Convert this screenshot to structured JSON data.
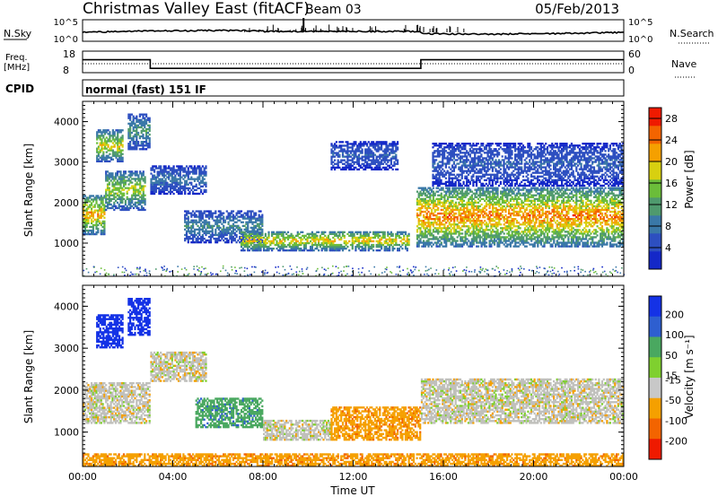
{
  "header": {
    "station": "Christmas Valley East (fitACF)",
    "beam": "Beam 03",
    "date": "05/Feb/2013"
  },
  "nsky": {
    "label": "N.Sky",
    "tick_top": "10^5",
    "tick_bottom": "10^0",
    "right_label": "N.Search",
    "right_tick_top": "10^5",
    "right_tick_bottom": "10^0"
  },
  "freq": {
    "label_line1": "Freq.",
    "label_line2": "[MHz]",
    "tick_top": "18",
    "tick_bottom": "8",
    "right_label": "Nave",
    "right_tick_top": "60",
    "right_tick_bottom": "0"
  },
  "cpid": {
    "label": "CPID",
    "mode": "normal (fast) 151 IF"
  },
  "power_panel": {
    "ylabel": "Slant Range [km]",
    "yticks": [
      "1000",
      "2000",
      "3000",
      "4000"
    ],
    "colorbar_label": "Power [dB]",
    "colorbar_ticks": [
      "4",
      "8",
      "12",
      "16",
      "20",
      "24",
      "28"
    ]
  },
  "velocity_panel": {
    "ylabel": "Slant Range [km]",
    "yticks": [
      "1000",
      "2000",
      "3000",
      "4000"
    ],
    "colorbar_label": "Velocity [m s⁻¹]",
    "colorbar_ticks": [
      "200",
      "100",
      "50",
      "15",
      "-15",
      "-50",
      "-100",
      "-200"
    ]
  },
  "xaxis": {
    "label": "Time UT",
    "ticks": [
      "00:00",
      "04:00",
      "08:00",
      "12:00",
      "16:00",
      "20:00",
      "00:00"
    ]
  },
  "colors": {
    "power_scale": [
      "#1428c8",
      "#2d4fc0",
      "#3a78a8",
      "#4f9a6e",
      "#6bbd3a",
      "#d8d010",
      "#f5a000",
      "#f36400",
      "#ef1a00"
    ],
    "velocity_scale": [
      "#1432e6",
      "#2e5fd0",
      "#4aa860",
      "#7fd02f",
      "#c8c8c8",
      "#f5a000",
      "#f36400",
      "#ef1a00"
    ],
    "ground_scatter": "#c0c0bc"
  },
  "chart_data": {
    "type": "heatmap",
    "title": "Christmas Valley East (fitACF) Beam 03",
    "xlabel": "Time UT",
    "x_ticks": [
      "00:00",
      "04:00",
      "08:00",
      "12:00",
      "16:00",
      "20:00",
      "00:00"
    ],
    "xlim_hours": [
      0,
      24
    ],
    "ylim_km": [
      180,
      4500
    ],
    "frequency_MHz": [
      {
        "start": "00:00",
        "end": "03:00",
        "value": 14
      },
      {
        "start": "03:00",
        "end": "15:00",
        "value": 10
      },
      {
        "start": "15:00",
        "end": "24:00",
        "value": 14
      }
    ],
    "cpid": "normal (fast) 151 IF",
    "panels": [
      {
        "name": "Power",
        "colorbar_label": "Power [dB]",
        "colorbar_range": [
          0,
          30
        ],
        "ylabel": "Slant Range [km]",
        "echo_bands": [
          {
            "t0": 0.0,
            "t1": 1.0,
            "r0": 1200,
            "r1": 2200,
            "peak_dB": 26
          },
          {
            "t0": 0.6,
            "t1": 1.8,
            "r0": 3000,
            "r1": 3800,
            "peak_dB": 22
          },
          {
            "t0": 1.0,
            "t1": 2.8,
            "r0": 1800,
            "r1": 2800,
            "peak_dB": 20
          },
          {
            "t0": 2.0,
            "t1": 3.0,
            "r0": 3300,
            "r1": 4200,
            "peak_dB": 14
          },
          {
            "t0": 3.0,
            "t1": 5.5,
            "r0": 2200,
            "r1": 2900,
            "peak_dB": 10
          },
          {
            "t0": 4.5,
            "t1": 8.0,
            "r0": 1000,
            "r1": 1800,
            "peak_dB": 12
          },
          {
            "t0": 7.0,
            "t1": 14.5,
            "r0": 800,
            "r1": 1300,
            "peak_dB": 24
          },
          {
            "t0": 11.0,
            "t1": 14.0,
            "r0": 2800,
            "r1": 3500,
            "peak_dB": 8
          },
          {
            "t0": 14.8,
            "t1": 24.0,
            "r0": 900,
            "r1": 2400,
            "peak_dB": 28
          },
          {
            "t0": 15.5,
            "t1": 24.0,
            "r0": 2400,
            "r1": 3500,
            "peak_dB": 8
          }
        ]
      },
      {
        "name": "Velocity",
        "colorbar_label": "Velocity [m s⁻¹]",
        "colorbar_range": [
          -200,
          200
        ],
        "ylabel": "Slant Range [km]",
        "echo_bands": [
          {
            "t0": 0.0,
            "t1": 3.0,
            "r0": 1200,
            "r1": 2200,
            "velocity": 0
          },
          {
            "t0": 0.6,
            "t1": 1.8,
            "r0": 3000,
            "r1": 3800,
            "velocity": 200
          },
          {
            "t0": 2.0,
            "t1": 3.0,
            "r0": 3300,
            "r1": 4200,
            "velocity": 200
          },
          {
            "t0": 3.0,
            "t1": 5.5,
            "r0": 2200,
            "r1": 2900,
            "velocity": 0
          },
          {
            "t0": 5.0,
            "t1": 8.0,
            "r0": 1100,
            "r1": 1800,
            "velocity": 60
          },
          {
            "t0": 8.0,
            "t1": 11.0,
            "r0": 800,
            "r1": 1300,
            "velocity": 0
          },
          {
            "t0": 11.0,
            "t1": 15.0,
            "r0": 800,
            "r1": 1600,
            "velocity": -60
          },
          {
            "t0": 15.0,
            "t1": 24.0,
            "r0": 1200,
            "r1": 2300,
            "velocity": 0
          },
          {
            "t0": 0.0,
            "t1": 24.0,
            "r0": 180,
            "r1": 500,
            "velocity": -60
          }
        ]
      }
    ]
  }
}
